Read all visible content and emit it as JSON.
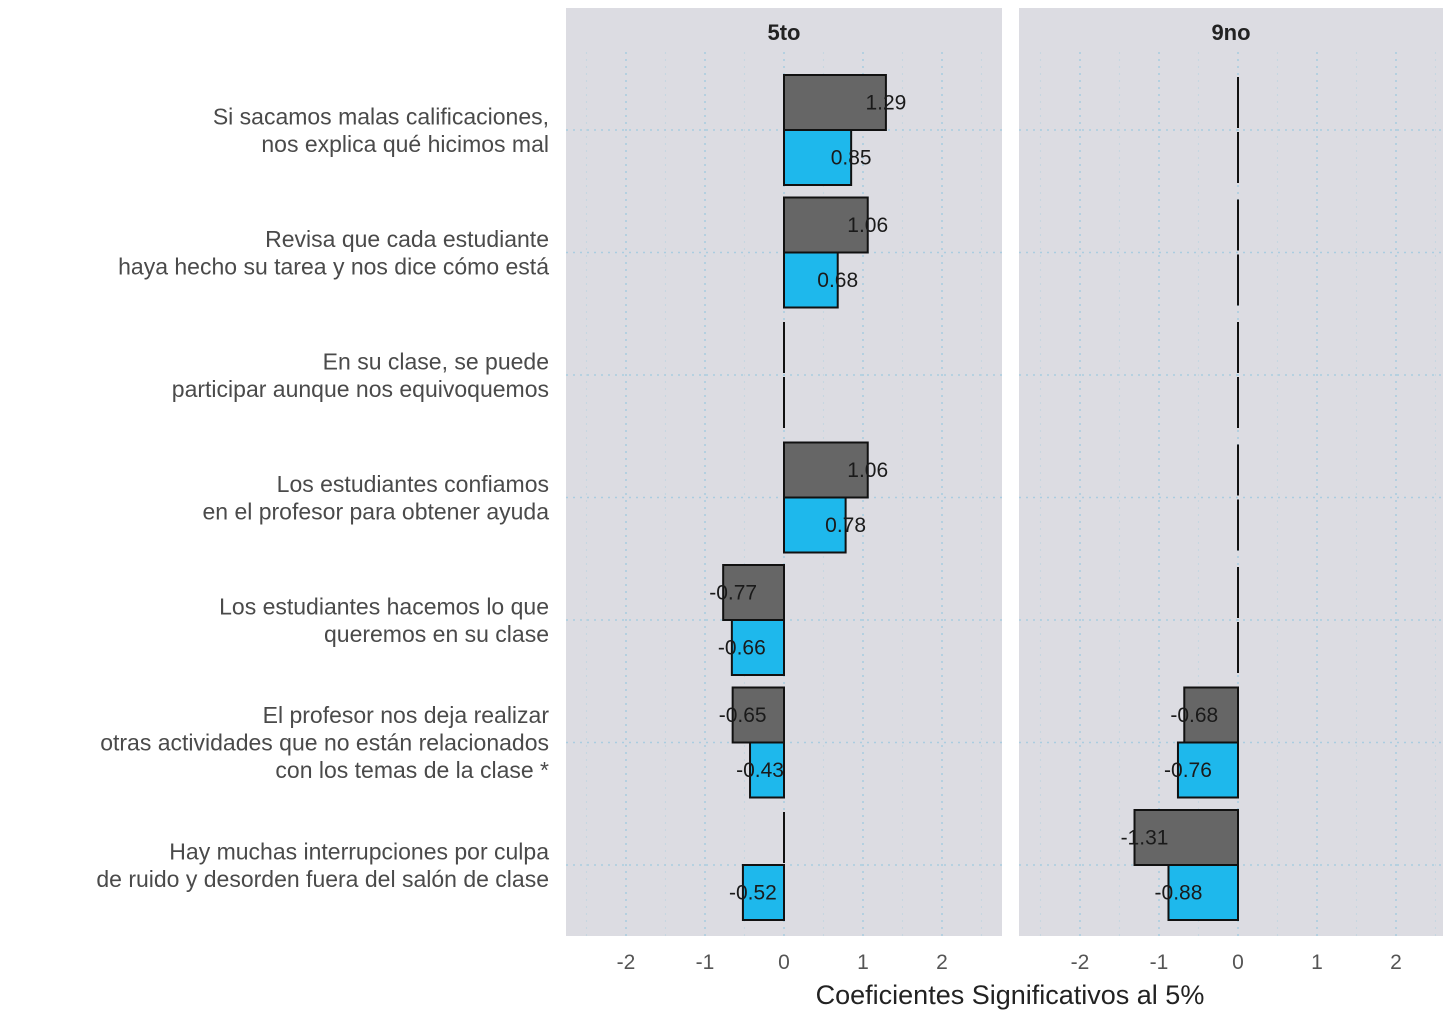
{
  "chart_data": {
    "type": "bar",
    "orientation": "horizontal",
    "xlabel": "Coeficientes Significativos al 5%",
    "xlim": [
      -2.6,
      2.6
    ],
    "xticks": [
      -2,
      -1,
      0,
      1,
      2
    ],
    "grid": true,
    "legend": "none",
    "series_colors": [
      "#666666",
      "#1eb8ec"
    ],
    "categories": [
      [
        "Si sacamos malas calificaciones,",
        "nos explica qué hicimos mal"
      ],
      [
        "Revisa que cada estudiante",
        "haya hecho su tarea y nos dice cómo está"
      ],
      [
        "En su clase, se puede",
        "participar aunque nos equivoquemos"
      ],
      [
        "Los estudiantes confiamos",
        "en el profesor para obtener ayuda"
      ],
      [
        "Los estudiantes hacemos lo que",
        "queremos en su clase"
      ],
      [
        "El profesor nos deja realizar",
        "otras actividades que no están relacionados",
        "con los temas de la clase *"
      ],
      [
        "Hay muchas interrupciones por culpa",
        "de ruido y desorden fuera del salón de clase"
      ]
    ],
    "panels": [
      {
        "name": "5to",
        "series": [
          {
            "values": [
              1.29,
              1.06,
              0,
              1.06,
              -0.77,
              -0.65,
              0
            ],
            "labels": [
              "1.29",
              "1.06",
              "",
              "1.06",
              "-0.77",
              "-0.65",
              ""
            ]
          },
          {
            "values": [
              0.85,
              0.68,
              0,
              0.78,
              -0.66,
              -0.43,
              -0.52
            ],
            "labels": [
              "0.85",
              "0.68",
              "",
              "0.78",
              "-0.66",
              "-0.43",
              "-0.52"
            ]
          }
        ]
      },
      {
        "name": "9no",
        "series": [
          {
            "values": [
              0,
              0,
              0,
              0,
              0,
              -0.68,
              -1.31
            ],
            "labels": [
              "",
              "",
              "",
              "",
              "",
              "-0.68",
              "-1.31"
            ]
          },
          {
            "values": [
              0,
              0,
              0,
              0,
              0,
              -0.76,
              -0.88
            ],
            "labels": [
              "",
              "",
              "",
              "",
              "",
              "-0.76",
              "-0.88"
            ]
          }
        ]
      }
    ]
  }
}
